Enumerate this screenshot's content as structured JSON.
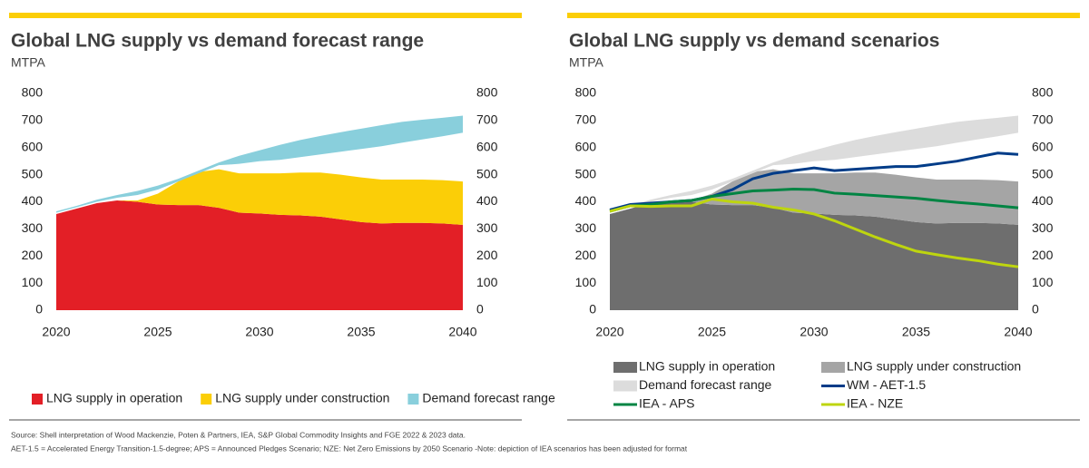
{
  "chart_data": [
    {
      "type": "area",
      "title": "Global LNG supply vs demand forecast range",
      "subtitle": "MTPA",
      "x": [
        2020,
        2021,
        2022,
        2023,
        2024,
        2025,
        2026,
        2027,
        2028,
        2029,
        2030,
        2031,
        2032,
        2033,
        2034,
        2035,
        2036,
        2037,
        2038,
        2039,
        2040
      ],
      "xlim": [
        2020,
        2040
      ],
      "xticks": [
        2020,
        2025,
        2030,
        2035,
        2040
      ],
      "ylim": [
        0,
        800
      ],
      "yticks": [
        0,
        100,
        200,
        300,
        400,
        500,
        600,
        700,
        800
      ],
      "y2lim": [
        0,
        800
      ],
      "y2ticks": [
        0,
        100,
        200,
        300,
        400,
        500,
        600,
        700,
        800
      ],
      "legend": "bottom",
      "legend_columns": 3,
      "series": [
        {
          "name": "LNG supply in operation",
          "color": "#e31f26",
          "kind": "stacked-area",
          "values": [
            355,
            375,
            395,
            405,
            400,
            390,
            388,
            388,
            378,
            360,
            357,
            352,
            350,
            345,
            335,
            325,
            320,
            322,
            322,
            320,
            315
          ]
        },
        {
          "name": "LNG supply under construction",
          "color": "#fbce07",
          "kind": "stacked-area",
          "values": [
            0,
            0,
            0,
            0,
            5,
            40,
            87,
            122,
            142,
            145,
            148,
            153,
            158,
            163,
            165,
            165,
            162,
            160,
            160,
            160,
            160
          ]
        },
        {
          "name": "Demand forecast range",
          "color": "#89cfdc",
          "kind": "band",
          "low": [
            360,
            380,
            400,
            415,
            425,
            445,
            475,
            505,
            535,
            540,
            550,
            555,
            565,
            575,
            585,
            595,
            605,
            618,
            630,
            642,
            655
          ],
          "high": [
            365,
            385,
            408,
            425,
            440,
            460,
            485,
            515,
            545,
            570,
            590,
            610,
            628,
            643,
            657,
            670,
            683,
            695,
            703,
            710,
            718
          ]
        }
      ]
    },
    {
      "type": "area",
      "title": "Global LNG supply vs demand scenarios",
      "subtitle": "MTPA",
      "x": [
        2020,
        2021,
        2022,
        2023,
        2024,
        2025,
        2026,
        2027,
        2028,
        2029,
        2030,
        2031,
        2032,
        2033,
        2034,
        2035,
        2036,
        2037,
        2038,
        2039,
        2040
      ],
      "xlim": [
        2020,
        2040
      ],
      "xticks": [
        2020,
        2025,
        2030,
        2035,
        2040
      ],
      "ylim": [
        0,
        800
      ],
      "yticks": [
        0,
        100,
        200,
        300,
        400,
        500,
        600,
        700,
        800
      ],
      "y2lim": [
        0,
        800
      ],
      "y2ticks": [
        0,
        100,
        200,
        300,
        400,
        500,
        600,
        700,
        800
      ],
      "legend": "bottom",
      "legend_columns": 2,
      "series": [
        {
          "name": "LNG supply in operation",
          "color": "#6e6e6e",
          "kind": "stacked-area",
          "values": [
            355,
            375,
            395,
            405,
            400,
            390,
            388,
            388,
            378,
            360,
            357,
            352,
            350,
            345,
            335,
            325,
            320,
            322,
            322,
            320,
            315
          ]
        },
        {
          "name": "LNG supply under construction",
          "color": "#a5a5a5",
          "kind": "stacked-area",
          "values": [
            0,
            0,
            0,
            0,
            5,
            40,
            87,
            122,
            142,
            145,
            148,
            153,
            158,
            163,
            165,
            165,
            162,
            160,
            160,
            160,
            160
          ]
        },
        {
          "name": "Demand forecast range",
          "color": "#dcdcdc",
          "kind": "band",
          "low": [
            360,
            380,
            400,
            415,
            425,
            445,
            475,
            505,
            535,
            540,
            550,
            555,
            565,
            575,
            585,
            595,
            605,
            618,
            630,
            642,
            655
          ],
          "high": [
            365,
            385,
            408,
            425,
            440,
            460,
            485,
            515,
            545,
            570,
            590,
            610,
            628,
            643,
            657,
            670,
            683,
            695,
            703,
            710,
            718
          ]
        },
        {
          "name": "WM - AET-1.5",
          "color": "#003c88",
          "kind": "line",
          "values": [
            370,
            390,
            395,
            400,
            405,
            420,
            445,
            485,
            505,
            515,
            525,
            515,
            520,
            525,
            530,
            530,
            540,
            550,
            565,
            580,
            575
          ]
        },
        {
          "name": "IEA - APS",
          "color": "#008443",
          "kind": "line",
          "values": [
            365,
            385,
            390,
            400,
            405,
            420,
            430,
            440,
            443,
            447,
            445,
            432,
            428,
            423,
            418,
            413,
            405,
            398,
            392,
            385,
            378
          ]
        },
        {
          "name": "IEA - NZE",
          "color": "#bed50f",
          "kind": "line",
          "values": [
            365,
            385,
            383,
            385,
            385,
            410,
            400,
            395,
            380,
            370,
            355,
            330,
            300,
            270,
            243,
            218,
            205,
            193,
            183,
            170,
            160
          ]
        }
      ]
    }
  ],
  "source": "Source: Shell interpretation of Wood Mackenzie, Poten & Partners, IEA, S&P Global Commodity Insights and FGE 2022 & 2023 data.",
  "note": "AET-1.5 = Accelerated Energy Transition-1.5-degree; APS = Announced Pledges Scenario; NZE: Net Zero Emissions by 2050 Scenario  -Note: depiction of IEA scenarios has been adjusted for format"
}
